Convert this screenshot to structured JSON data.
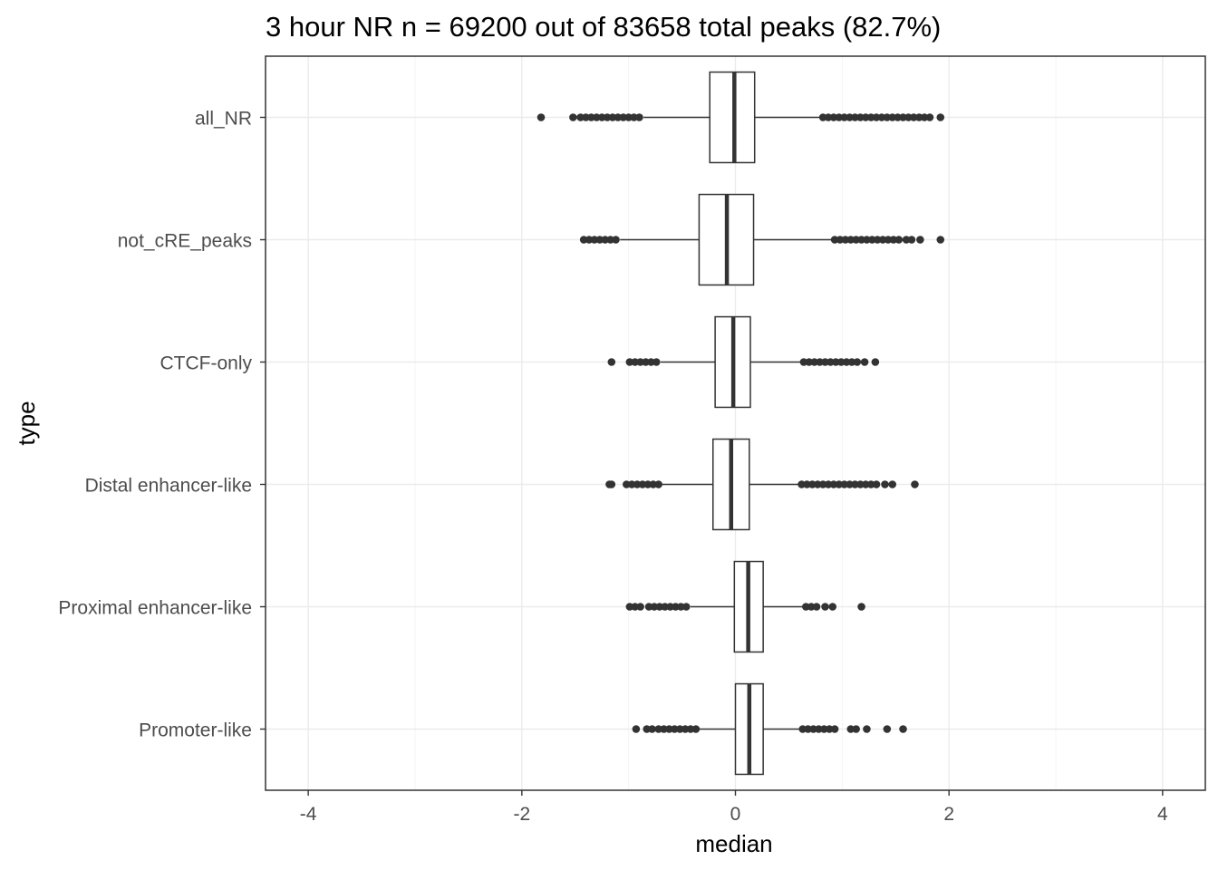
{
  "chart_data": {
    "type": "boxplot",
    "orientation": "horizontal",
    "title": "3 hour NR n = 69200 out of 83658 total peaks (82.7%)",
    "xlabel": "median",
    "ylabel": "type",
    "xlim": [
      -4.4,
      4.4
    ],
    "xticks": [
      -4,
      -2,
      0,
      2,
      4
    ],
    "xtick_labels": [
      "-4",
      "-2",
      "0",
      "2",
      "4"
    ],
    "grid": true,
    "theme": "bw",
    "colors": {
      "box_stroke": "#333333",
      "grid_major": "#ebebeb",
      "grid_minor": "#f5f5f5",
      "panel_border": "#333333"
    },
    "categories": [
      "all_NR",
      "not_cRE_peaks",
      "CTCF-only",
      "Distal enhancer-like",
      "Proximal enhancer-like",
      "Promoter-like"
    ],
    "boxes": [
      {
        "label": "all_NR",
        "whisker_low": -0.86,
        "q1": -0.24,
        "median": -0.01,
        "q3": 0.18,
        "whisker_high": 0.8,
        "outliers": [
          -1.82,
          -1.52,
          -1.45,
          -1.4,
          -1.35,
          -1.3,
          -1.25,
          -1.2,
          -1.15,
          -1.1,
          -1.05,
          -1.0,
          -0.95,
          -0.9,
          0.82,
          0.87,
          0.92,
          0.97,
          1.02,
          1.07,
          1.12,
          1.17,
          1.22,
          1.27,
          1.32,
          1.37,
          1.42,
          1.47,
          1.52,
          1.57,
          1.62,
          1.67,
          1.72,
          1.77,
          1.82,
          1.92
        ]
      },
      {
        "label": "not_cRE_peaks",
        "whisker_low": -1.08,
        "q1": -0.34,
        "median": -0.08,
        "q3": 0.17,
        "whisker_high": 0.9,
        "outliers": [
          -1.42,
          -1.37,
          -1.32,
          -1.27,
          -1.22,
          -1.17,
          -1.12,
          0.93,
          0.98,
          1.03,
          1.08,
          1.13,
          1.18,
          1.23,
          1.28,
          1.33,
          1.38,
          1.43,
          1.48,
          1.53,
          1.6,
          1.65,
          1.73,
          1.92
        ]
      },
      {
        "label": "CTCF-only",
        "whisker_low": -0.7,
        "q1": -0.19,
        "median": -0.02,
        "q3": 0.14,
        "whisker_high": 0.62,
        "outliers": [
          -1.16,
          -0.99,
          -0.94,
          -0.89,
          -0.84,
          -0.79,
          -0.74,
          0.64,
          0.69,
          0.74,
          0.79,
          0.84,
          0.89,
          0.94,
          0.99,
          1.04,
          1.09,
          1.14,
          1.21,
          1.31
        ]
      },
      {
        "label": "Distal enhancer-like",
        "whisker_low": -0.7,
        "q1": -0.21,
        "median": -0.04,
        "q3": 0.13,
        "whisker_high": 0.6,
        "outliers": [
          -1.18,
          -1.16,
          -1.02,
          -0.97,
          -0.92,
          -0.87,
          -0.82,
          -0.77,
          -0.72,
          0.62,
          0.67,
          0.72,
          0.77,
          0.82,
          0.87,
          0.92,
          0.97,
          1.02,
          1.07,
          1.12,
          1.17,
          1.22,
          1.27,
          1.32,
          1.4,
          1.47,
          1.68
        ]
      },
      {
        "label": "Proximal enhancer-like",
        "whisker_low": -0.42,
        "q1": -0.01,
        "median": 0.12,
        "q3": 0.26,
        "whisker_high": 0.64,
        "outliers": [
          -0.99,
          -0.94,
          -0.89,
          -0.81,
          -0.76,
          -0.71,
          -0.66,
          -0.61,
          -0.56,
          -0.51,
          -0.46,
          0.66,
          0.71,
          0.76,
          0.84,
          0.91,
          1.18
        ]
      },
      {
        "label": "Promoter-like",
        "whisker_low": -0.35,
        "q1": 0.0,
        "median": 0.13,
        "q3": 0.26,
        "whisker_high": 0.61,
        "outliers": [
          -0.93,
          -0.83,
          -0.78,
          -0.72,
          -0.67,
          -0.62,
          -0.57,
          -0.52,
          -0.47,
          -0.42,
          -0.37,
          0.63,
          0.68,
          0.73,
          0.78,
          0.83,
          0.88,
          0.93,
          1.08,
          1.13,
          1.23,
          1.42,
          1.57
        ]
      }
    ]
  }
}
